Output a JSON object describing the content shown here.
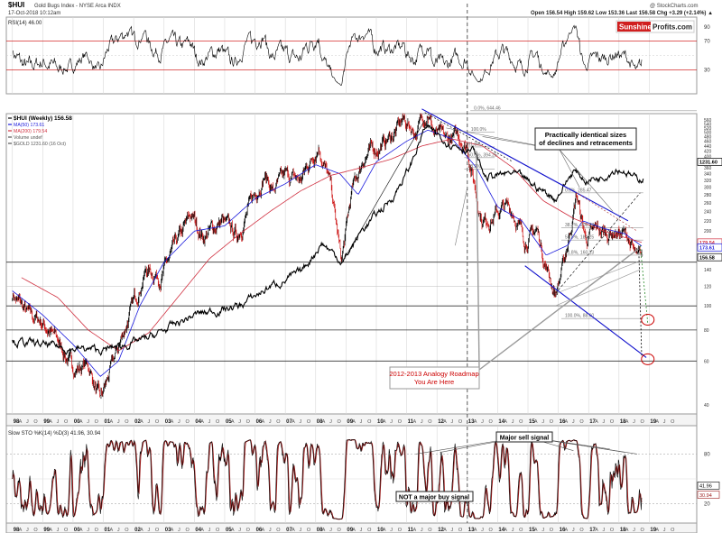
{
  "header": {
    "symbol": "$HUI",
    "name": "Gold Bugs Index - NYSE Arca INDX",
    "date_time": "17-Oct-2018 10:12am",
    "copyright": "@ StockCharts.com",
    "ohlc": "Open 156.54  High 159.62  Low 153.36  Last 156.58  Chg +3.29 (+2.14%) ▲"
  },
  "brand": {
    "part1": "Sunshine",
    "part2": "Profits.com"
  },
  "colors": {
    "price": "#000000",
    "ma50": "#1a1adc",
    "ma200": "#d03040",
    "gold": "#000000",
    "stoch_k": "#000000",
    "stoch_d": "#9b1c1c",
    "rsi": "#000000",
    "overbought": "#cc0000",
    "annotation_blue": "#1010cc",
    "annotation_gray": "#9a9a9a",
    "green_dash": "#2a8a2a",
    "highlight_red": "#cc0000",
    "grid": "#d8d8d8",
    "callout_text": "#cc0000"
  },
  "chart_data": [
    {
      "id": "rsi",
      "type": "line",
      "title": "RSI(14) 46.00",
      "ylim": [
        0,
        100
      ],
      "ticks": [
        "30",
        "70",
        "90"
      ],
      "last_value": "46.00",
      "reference_levels": [
        30,
        70
      ]
    },
    {
      "id": "price",
      "type": "line",
      "title": "$HUI (Weekly) 156.58",
      "scale": "log",
      "ylim": [
        38,
        560
      ],
      "legend": [
        {
          "label": "$HUI (Weekly) 156.58",
          "color": "#000000"
        },
        {
          "label": "MA(50) 173.61",
          "color": "#1a1adc"
        },
        {
          "label": "MA(200) 179.54",
          "color": "#d03040"
        },
        {
          "label": "Volume undef",
          "color": "#555555"
        },
        {
          "label": "$GOLD 1231.60 (16 Oct)",
          "color": "#555555"
        }
      ],
      "y_ticks": [
        40,
        60,
        80,
        100,
        120,
        140,
        160,
        180,
        200,
        220,
        240,
        260,
        280,
        300,
        320,
        340,
        360,
        380,
        400,
        420,
        440,
        460,
        480,
        500,
        520,
        540,
        560
      ],
      "value_tags": [
        {
          "label": "1231.60",
          "value": 380,
          "color": "#000000"
        },
        {
          "label": "179.54",
          "value": 180,
          "color": "#d03040"
        },
        {
          "label": "173.61",
          "value": 172,
          "color": "#1a1adc"
        },
        {
          "label": "156.58",
          "value": 157,
          "color": "#000000"
        }
      ],
      "series": [
        {
          "name": "HUI",
          "x": [
            1998.0,
            1998.5,
            1999.0,
            1999.5,
            2000.0,
            2000.5,
            2000.9,
            2001.3,
            2001.8,
            2002.4,
            2002.9,
            2003.5,
            2003.9,
            2004.3,
            2004.9,
            2005.4,
            2005.9,
            2006.3,
            2006.6,
            2007.0,
            2007.5,
            2008.1,
            2008.5,
            2008.85,
            2009.2,
            2009.6,
            2010.0,
            2010.5,
            2010.9,
            2011.3,
            2011.7,
            2011.9,
            2012.3,
            2012.7,
            2013.0,
            2013.3,
            2013.5,
            2013.9,
            2014.2,
            2014.5,
            2014.9,
            2015.3,
            2015.6,
            2015.9,
            2016.2,
            2016.6,
            2016.9,
            2017.3,
            2017.6,
            2017.9,
            2018.3,
            2018.6,
            2018.75
          ],
          "values": [
            112,
            92,
            86,
            72,
            56,
            58,
            41,
            58,
            88,
            140,
            132,
            185,
            230,
            190,
            220,
            190,
            265,
            340,
            290,
            330,
            320,
            450,
            300,
            150,
            290,
            400,
            430,
            480,
            560,
            500,
            620,
            500,
            460,
            480,
            440,
            280,
            220,
            230,
            250,
            240,
            185,
            200,
            145,
            112,
            150,
            280,
            185,
            200,
            195,
            200,
            190,
            150,
            157
          ]
        },
        {
          "name": "MA(50)",
          "x": [
            1998.0,
            1999.0,
            2000.0,
            2000.9,
            2001.5,
            2002.2,
            2003.0,
            2004.0,
            2005.0,
            2006.0,
            2007.0,
            2008.0,
            2008.8,
            2009.4,
            2010.0,
            2011.0,
            2011.7,
            2012.5,
            2013.3,
            2014.0,
            2014.8,
            2015.6,
            2016.3,
            2016.8,
            2017.5,
            2018.2,
            2018.75
          ],
          "values": [
            115,
            92,
            70,
            52,
            60,
            100,
            150,
            200,
            210,
            270,
            310,
            370,
            340,
            280,
            380,
            460,
            510,
            470,
            360,
            250,
            220,
            160,
            175,
            220,
            205,
            195,
            174
          ]
        },
        {
          "name": "MA(200)",
          "x": [
            1998.3,
            1999.5,
            2000.5,
            2001.5,
            2002.5,
            2003.5,
            2004.5,
            2005.5,
            2006.5,
            2007.5,
            2008.5,
            2009.5,
            2010.5,
            2011.5,
            2012.5,
            2013.5,
            2014.5,
            2015.5,
            2016.5,
            2017.5,
            2018.75
          ],
          "values": [
            130,
            108,
            80,
            66,
            78,
            110,
            155,
            195,
            240,
            290,
            335,
            360,
            390,
            440,
            470,
            440,
            360,
            265,
            225,
            200,
            180
          ]
        },
        {
          "name": "$GOLD (overlay)",
          "x": [
            1998.0,
            1999.6,
            2001.0,
            2002.5,
            2004.0,
            2005.5,
            2006.5,
            2007.5,
            2008.2,
            2008.9,
            2009.5,
            2010.5,
            2011.1,
            2011.6,
            2012.5,
            2013.2,
            2013.6,
            2014.5,
            2015.3,
            2015.9,
            2016.5,
            2016.9,
            2017.4,
            2017.9,
            2018.2,
            2018.6,
            2018.8
          ],
          "values": [
            72,
            68,
            66,
            74,
            92,
            100,
            120,
            135,
            180,
            150,
            200,
            270,
            360,
            520,
            450,
            420,
            330,
            340,
            300,
            270,
            350,
            320,
            330,
            360,
            350,
            320,
            330
          ]
        }
      ],
      "fibonacci": [
        {
          "label": "0.0%, 644.46",
          "value": 610
        },
        {
          "label": "100.0%",
          "value": 500
        },
        {
          "label": "61.8%",
          "value": 436
        },
        {
          "label": "50.0%, 394.25",
          "value": 395
        },
        {
          "label": "38.2%",
          "value": 355
        },
        {
          "label": "0.0%, 285.47",
          "value": 285
        },
        {
          "label": "38.2%, 206.37",
          "value": 206
        },
        {
          "label": "50.0%, 184.25",
          "value": 184
        },
        {
          "label": "61.8%, 160.13",
          "value": 160
        },
        {
          "label": "100.0%, 88.60",
          "value": 89
        }
      ],
      "horizontal_levels": [
        60,
        80,
        100,
        150
      ],
      "callouts": [
        "Practically identical sizes of declines and retracements",
        "2012-2013 Analogy Roadmap: You Are Here"
      ]
    },
    {
      "id": "stoch",
      "type": "line",
      "title": "Slow STO %K(14) %D(3) 41.96, 30.94",
      "ylim": [
        0,
        100
      ],
      "ticks": [
        "20",
        "80"
      ],
      "value_tags": [
        "41.96",
        "30.94"
      ],
      "callouts": [
        "Major sell signal",
        "NOT a major buy signal"
      ]
    }
  ],
  "x_axis": {
    "years": [
      {
        "label": "98",
        "x": 1998.0
      },
      {
        "label": "99",
        "x": 1999.0
      },
      {
        "label": "00",
        "x": 2000.0
      },
      {
        "label": "01",
        "x": 2001.0
      },
      {
        "label": "02",
        "x": 2002.0
      },
      {
        "label": "03",
        "x": 2003.0
      },
      {
        "label": "04",
        "x": 2004.0
      },
      {
        "label": "05",
        "x": 2005.0
      },
      {
        "label": "06",
        "x": 2006.0
      },
      {
        "label": "07",
        "x": 2007.0
      },
      {
        "label": "08",
        "x": 2008.0
      },
      {
        "label": "09",
        "x": 2009.0
      },
      {
        "label": "10",
        "x": 2010.0
      },
      {
        "label": "11",
        "x": 2011.0
      },
      {
        "label": "12",
        "x": 2012.0
      },
      {
        "label": "13",
        "x": 2013.0
      },
      {
        "label": "14",
        "x": 2014.0
      },
      {
        "label": "15",
        "x": 2015.0
      },
      {
        "label": "16",
        "x": 2016.0
      },
      {
        "label": "17",
        "x": 2017.0
      },
      {
        "label": "18",
        "x": 2018.0
      },
      {
        "label": "19",
        "x": 2019.0
      }
    ],
    "month_letters": [
      "A",
      "J",
      "O"
    ]
  }
}
